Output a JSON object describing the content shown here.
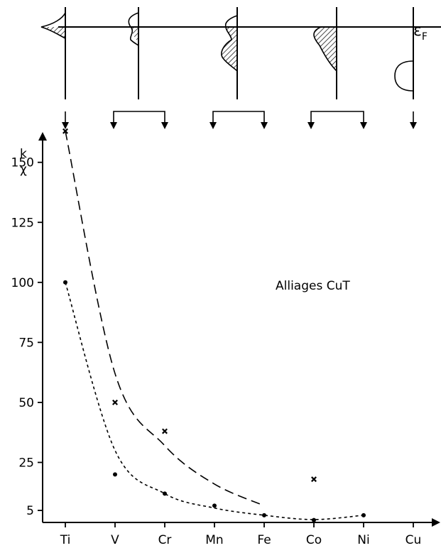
{
  "chart_data": {
    "type": "scatter",
    "title": "Alliages CuT",
    "y_axis_labels": [
      "k",
      "χ"
    ],
    "fermi_label": "ε",
    "fermi_subscript": "F",
    "categories": [
      "Ti",
      "V",
      "Cr",
      "Mn",
      "Fe",
      "Co",
      "Ni",
      "Cu"
    ],
    "y_ticks": [
      5,
      25,
      50,
      75,
      100,
      125,
      150
    ],
    "ylim": [
      0,
      175
    ],
    "grid": false,
    "series": [
      {
        "name": "k",
        "marker": "cross",
        "line": "long-dash",
        "points": [
          [
            "Ti",
            163
          ],
          [
            "V",
            50
          ],
          [
            "Cr",
            38
          ],
          [
            "Co",
            18
          ]
        ],
        "fit_curve": [
          [
            "Ti",
            163
          ],
          [
            "V",
            62
          ],
          [
            "Cr",
            32
          ],
          [
            "Mn",
            16
          ],
          [
            "Fe",
            7
          ]
        ]
      },
      {
        "name": "χ",
        "marker": "dot",
        "line": "short-dash",
        "points": [
          [
            "Ti",
            100
          ],
          [
            "V",
            20
          ],
          [
            "Cr",
            12
          ],
          [
            "Mn",
            7
          ],
          [
            "Fe",
            3
          ],
          [
            "Co",
            1
          ],
          [
            "Ni",
            3
          ]
        ],
        "fit_curve": [
          [
            "Ti",
            100
          ],
          [
            "V",
            30
          ],
          [
            "Cr",
            12
          ],
          [
            "Mn",
            6
          ],
          [
            "Fe",
            3
          ],
          [
            "Co",
            1.2
          ],
          [
            "Ni",
            3
          ]
        ]
      }
    ]
  }
}
